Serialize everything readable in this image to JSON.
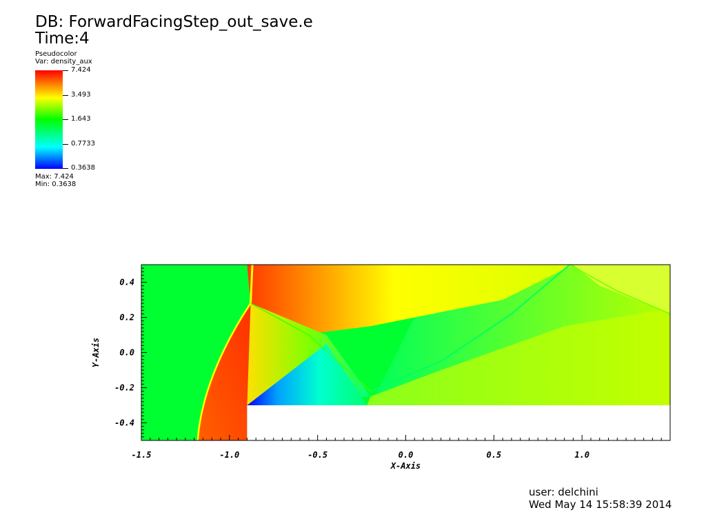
{
  "header": {
    "db_label": "DB: ForwardFacingStep_out_save.e",
    "time_label": "Time:4"
  },
  "legend": {
    "plot_type": "Pseudocolor",
    "variable": "Var: density_aux",
    "ticks": [
      "7.424",
      "3.493",
      "1.643",
      "0.7733",
      "0.3638"
    ],
    "max_label": "Max: 7.424",
    "min_label": "Min: 0.3638"
  },
  "footer": {
    "user": "user: delchini",
    "date": "Wed May 14 15:58:39 2014"
  },
  "chart_data": {
    "type": "heatmap",
    "title": "",
    "xlabel": "X-Axis",
    "ylabel": "Y-Axis",
    "xlim": [
      -1.5,
      1.5
    ],
    "ylim": [
      -0.5,
      0.5
    ],
    "x_ticks": [
      -1.5,
      -1.0,
      -0.5,
      0.0,
      0.5,
      1.0
    ],
    "y_ticks": [
      -0.4,
      -0.2,
      0.0,
      0.2,
      0.4
    ],
    "x_tick_labels": [
      "-1.5",
      "-1.0",
      "-0.5",
      "0.0",
      "0.5",
      "1.0"
    ],
    "y_tick_labels": [
      "-0.4",
      "-0.2",
      "0.0",
      "0.2",
      "0.4"
    ],
    "color_range": [
      0.3638,
      7.424
    ],
    "colormap": [
      "#0000ff",
      "#00ffff",
      "#00ff00",
      "#ffff00",
      "#ff0000"
    ],
    "step": {
      "x_start": -0.9,
      "y_top": -0.3
    }
  }
}
